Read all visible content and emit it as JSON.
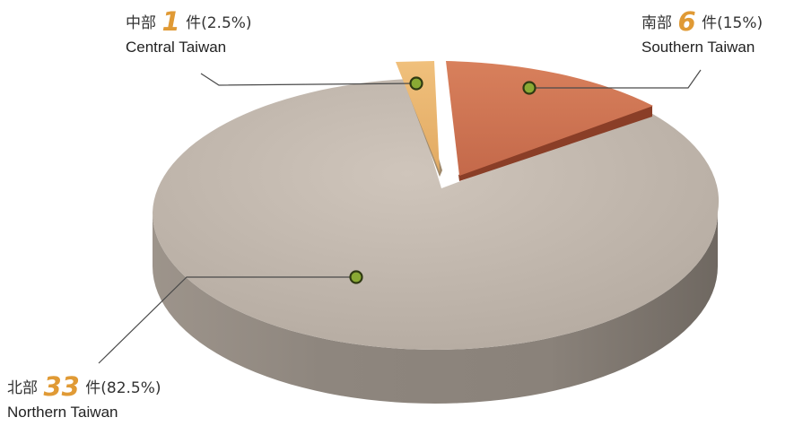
{
  "chart_data": {
    "type": "pie",
    "slices": [
      {
        "region_zh": "北部",
        "count": "33",
        "unit": "件",
        "percent": "(82.5%)",
        "region_en": "Northern Taiwan",
        "value": 82.5,
        "color": "#c0b5aa"
      },
      {
        "region_zh": "中部",
        "count": "1",
        "unit": "件",
        "percent": "(2.5%)",
        "region_en": "Central Taiwan",
        "value": 2.5,
        "color": "#e7b26d"
      },
      {
        "region_zh": "南部",
        "count": "6",
        "unit": "件",
        "percent": "(15%)",
        "region_en": "Southern Taiwan",
        "value": 15,
        "color": "#cf7250"
      }
    ]
  }
}
